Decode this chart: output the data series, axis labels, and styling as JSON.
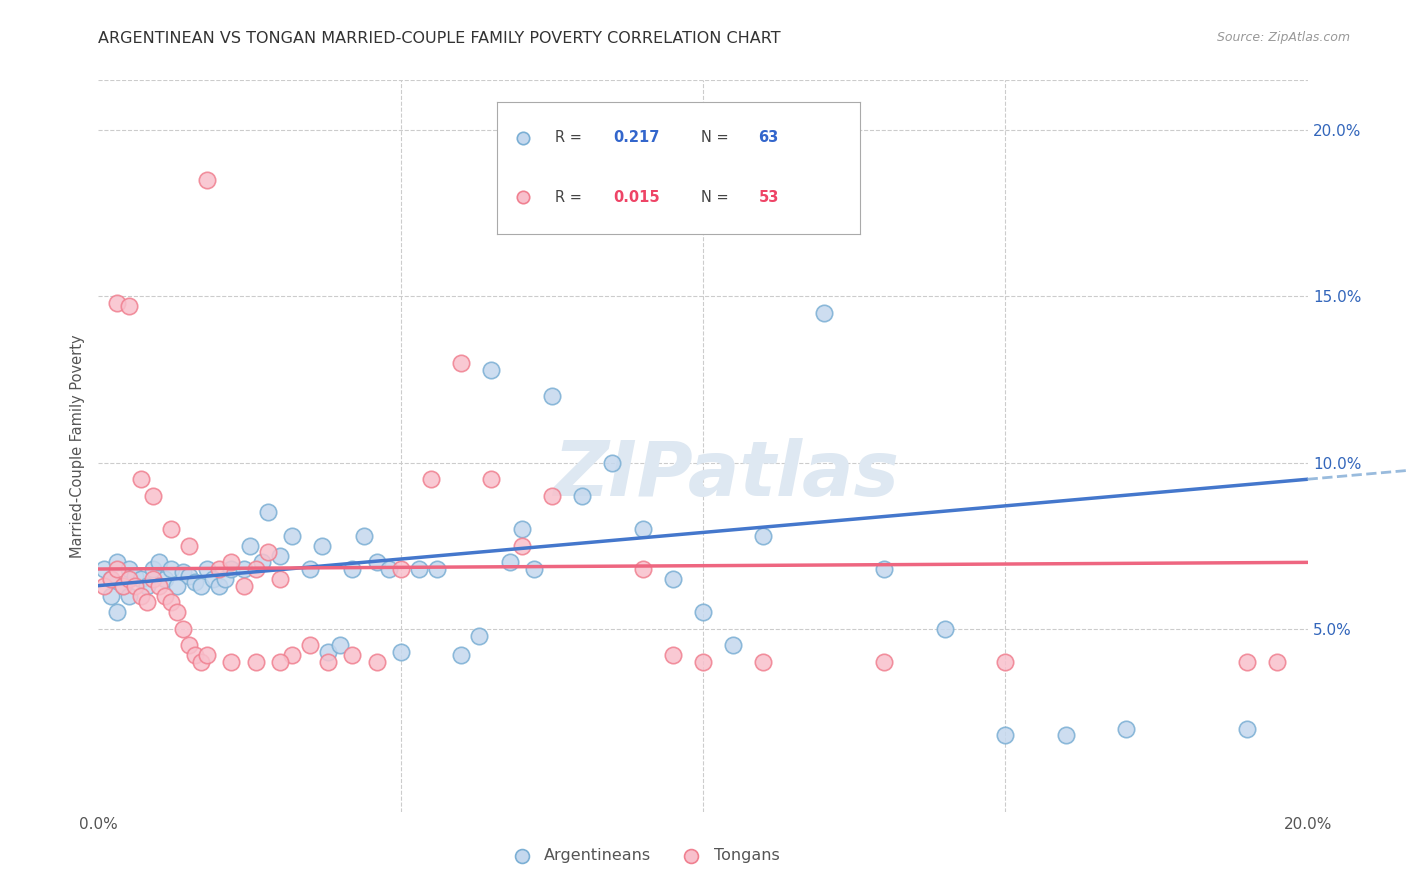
{
  "title": "ARGENTINEAN VS TONGAN MARRIED-COUPLE FAMILY POVERTY CORRELATION CHART",
  "source": "Source: ZipAtlas.com",
  "ylabel": "Married-Couple Family Poverty",
  "legend_label1": "Argentineans",
  "legend_label2": "Tongans",
  "r1": "0.217",
  "n1": "63",
  "r2": "0.015",
  "n2": "53",
  "xlim": [
    0.0,
    0.2
  ],
  "ylim": [
    -0.005,
    0.215
  ],
  "yticks": [
    0.05,
    0.1,
    0.15,
    0.2
  ],
  "ytick_labels": [
    "5.0%",
    "10.0%",
    "15.0%",
    "20.0%"
  ],
  "xticks": [
    0.0,
    0.05,
    0.1,
    0.15,
    0.2
  ],
  "xtick_labels": [
    "0.0%",
    "",
    "",
    "",
    "20.0%"
  ],
  "color_blue_edge": "#7BAFD4",
  "color_blue_face": "#C5D8EE",
  "color_pink_edge": "#F08090",
  "color_pink_face": "#F8C0CC",
  "line_blue": "#4477CC",
  "line_pink": "#EE6680",
  "line_blue_dash": "#99BBDD",
  "watermark": "ZIPatlas",
  "blue_line_y0": 0.063,
  "blue_line_y1": 0.095,
  "pink_line_y0": 0.068,
  "pink_line_y1": 0.07,
  "arg_x": [
    0.001,
    0.002,
    0.003,
    0.004,
    0.005,
    0.006,
    0.007,
    0.008,
    0.009,
    0.01,
    0.011,
    0.012,
    0.013,
    0.014,
    0.015,
    0.016,
    0.017,
    0.018,
    0.019,
    0.02,
    0.021,
    0.022,
    0.024,
    0.025,
    0.027,
    0.028,
    0.03,
    0.032,
    0.035,
    0.037,
    0.038,
    0.04,
    0.042,
    0.044,
    0.046,
    0.048,
    0.05,
    0.053,
    0.056,
    0.06,
    0.063,
    0.065,
    0.068,
    0.07,
    0.072,
    0.075,
    0.08,
    0.085,
    0.09,
    0.095,
    0.1,
    0.105,
    0.11,
    0.12,
    0.13,
    0.14,
    0.15,
    0.16,
    0.17,
    0.002,
    0.003,
    0.005,
    0.19
  ],
  "arg_y": [
    0.068,
    0.065,
    0.07,
    0.063,
    0.068,
    0.066,
    0.065,
    0.063,
    0.068,
    0.07,
    0.065,
    0.068,
    0.063,
    0.067,
    0.066,
    0.064,
    0.063,
    0.068,
    0.065,
    0.063,
    0.065,
    0.068,
    0.068,
    0.075,
    0.07,
    0.085,
    0.072,
    0.078,
    0.068,
    0.075,
    0.043,
    0.045,
    0.068,
    0.078,
    0.07,
    0.068,
    0.043,
    0.068,
    0.068,
    0.042,
    0.048,
    0.128,
    0.07,
    0.08,
    0.068,
    0.12,
    0.09,
    0.1,
    0.08,
    0.065,
    0.055,
    0.045,
    0.078,
    0.145,
    0.068,
    0.05,
    0.018,
    0.018,
    0.02,
    0.06,
    0.055,
    0.06,
    0.02
  ],
  "ton_x": [
    0.001,
    0.002,
    0.003,
    0.004,
    0.005,
    0.006,
    0.007,
    0.008,
    0.009,
    0.01,
    0.011,
    0.012,
    0.013,
    0.014,
    0.015,
    0.016,
    0.017,
    0.018,
    0.02,
    0.022,
    0.024,
    0.026,
    0.028,
    0.03,
    0.032,
    0.035,
    0.038,
    0.042,
    0.046,
    0.05,
    0.055,
    0.06,
    0.065,
    0.07,
    0.075,
    0.09,
    0.095,
    0.1,
    0.11,
    0.13,
    0.15,
    0.19,
    0.195,
    0.003,
    0.005,
    0.007,
    0.009,
    0.012,
    0.015,
    0.018,
    0.022,
    0.026,
    0.03
  ],
  "ton_y": [
    0.063,
    0.065,
    0.068,
    0.063,
    0.065,
    0.063,
    0.06,
    0.058,
    0.065,
    0.063,
    0.06,
    0.058,
    0.055,
    0.05,
    0.045,
    0.042,
    0.04,
    0.185,
    0.068,
    0.07,
    0.063,
    0.068,
    0.073,
    0.065,
    0.042,
    0.045,
    0.04,
    0.042,
    0.04,
    0.068,
    0.095,
    0.13,
    0.095,
    0.075,
    0.09,
    0.068,
    0.042,
    0.04,
    0.04,
    0.04,
    0.04,
    0.04,
    0.04,
    0.148,
    0.147,
    0.095,
    0.09,
    0.08,
    0.075,
    0.042,
    0.04,
    0.04,
    0.04
  ]
}
